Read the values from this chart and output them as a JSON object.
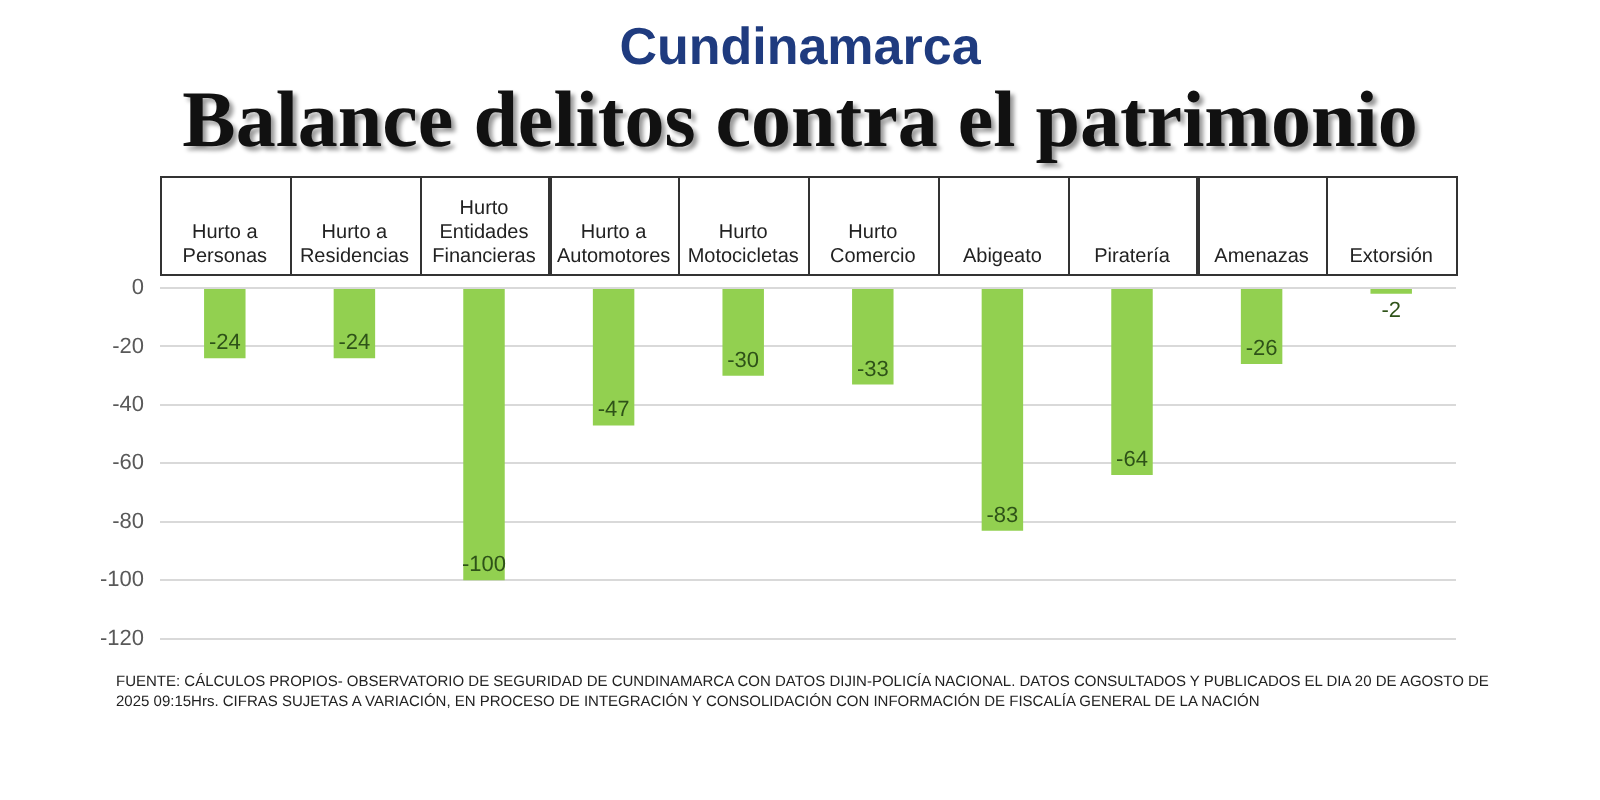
{
  "chart_data": {
    "type": "bar",
    "title": "Cundinamarca",
    "subtitle": "Balance delitos contra el patrimonio",
    "categories": [
      "Hurto a Personas",
      "Hurto a Residencias",
      "Hurto Entidades Financieras",
      "Hurto a Automotores",
      "Hurto Motocicletas",
      "Hurto Comercio",
      "Abigeato",
      "Piratería",
      "Amenazas",
      "Extorsión"
    ],
    "values": [
      -24,
      -24,
      -100,
      -47,
      -30,
      -33,
      -83,
      -64,
      -26,
      -2
    ],
    "color": "#92d050",
    "ylim": [
      -120,
      0
    ],
    "yticks": [
      -120,
      -100,
      -80,
      -60,
      -40,
      -20,
      0
    ],
    "grid": "y",
    "data_labels": true,
    "annotations": [
      "FUENTE: CÁLCULOS PROPIOS- OBSERVATORIO DE SEGURIDAD DE CUNDINAMARCA CON DATOS DIJIN-POLICÍA NACIONAL. DATOS CONSULTADOS Y PUBLICADOS EL DIA 20 DE AGOSTO DE 2025 09:15Hrs. CIFRAS SUJETAS A VARIACIÓN, EN PROCESO DE INTEGRACIÓN Y CONSOLIDACIÓN CON INFORMACIÓN DE FISCALÍA GENERAL DE LA NACIÓN"
    ]
  }
}
